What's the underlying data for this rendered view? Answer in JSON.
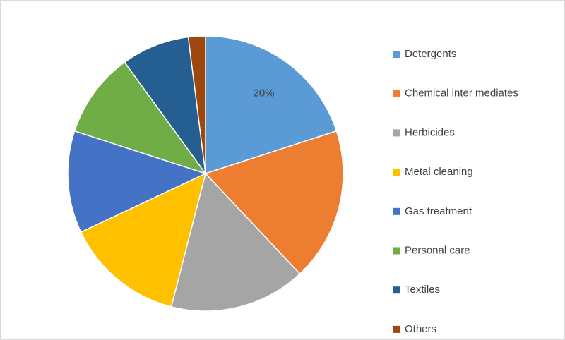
{
  "chart_data": {
    "type": "pie",
    "categories": [
      "Detergents",
      "Chemical inter mediates",
      "Herbicides",
      "Metal cleaning",
      "Gas treatment",
      "Personal care",
      "Textiles",
      "Others"
    ],
    "values": [
      20,
      18,
      16,
      14,
      12,
      10,
      8,
      2
    ],
    "value_labels": [
      "20%",
      null,
      null,
      null,
      null,
      null,
      null,
      null
    ],
    "colors": [
      "#5b9bd5",
      "#ed7d31",
      "#a5a5a5",
      "#ffc000",
      "#4472c4",
      "#70ad47",
      "#255e91",
      "#9e480e"
    ],
    "legend": "right"
  }
}
